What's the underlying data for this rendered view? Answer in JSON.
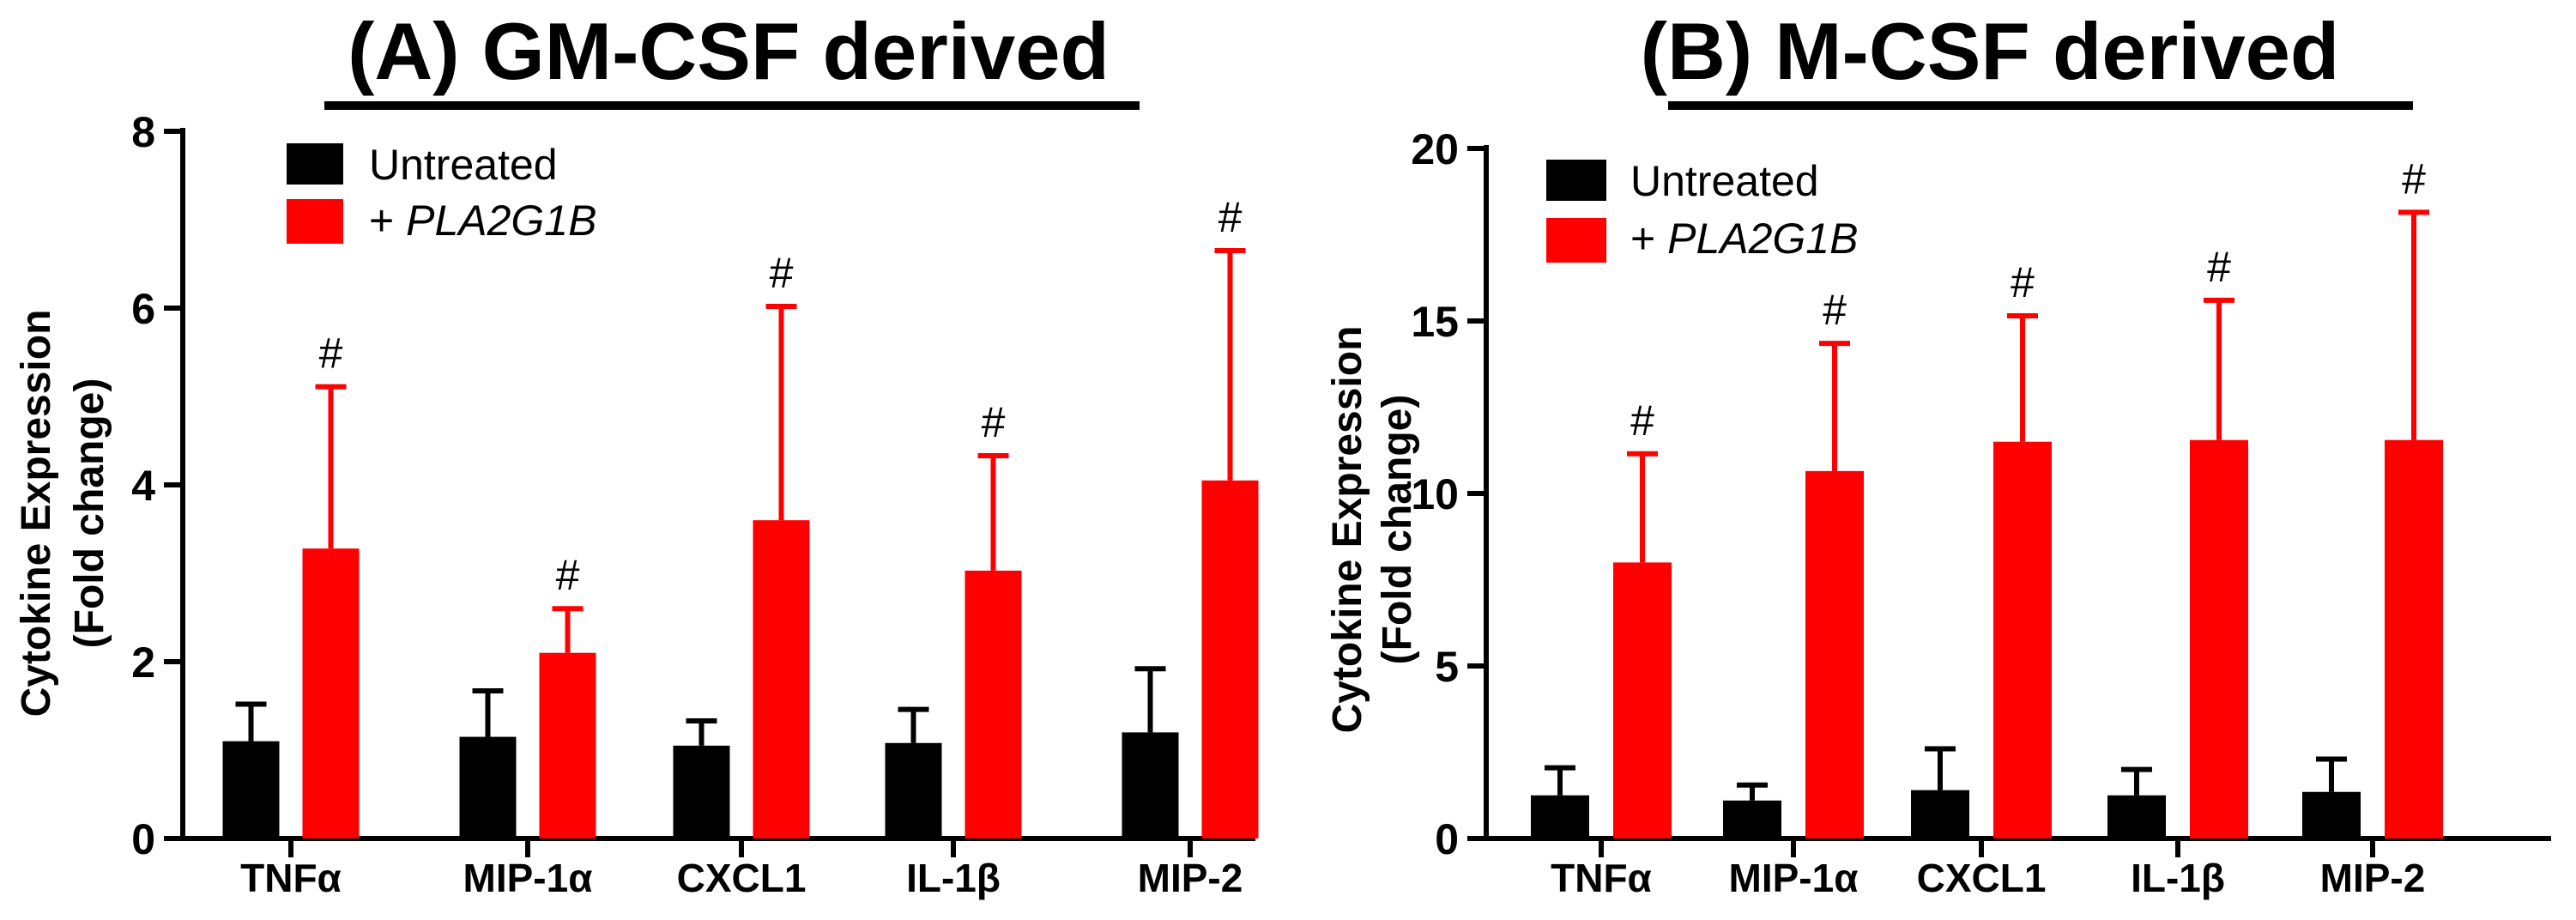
{
  "colors": {
    "untreated": "#000000",
    "treated": "#ff0000",
    "axis": "#000000"
  },
  "chart_data": [
    {
      "type": "bar",
      "title": "(A) GM-CSF derived",
      "ylabel_line1": "Cytokine Expression",
      "ylabel_line2": "(Fold change)",
      "ylim": [
        0,
        8
      ],
      "yticks": [
        "0",
        "2",
        "4",
        "6",
        "8"
      ],
      "categories": [
        "TNFα",
        "MIP-1α",
        "CXCL1",
        "IL-1β",
        "MIP-2"
      ],
      "significance_marker": "#",
      "legend": {
        "untreated": "Untreated",
        "treated_prefix": "+ ",
        "treated_gene": "PLA2G1B",
        "placement": "top-left"
      },
      "series": [
        {
          "name": "Untreated",
          "values": [
            1.1,
            1.15,
            1.05,
            1.08,
            1.2
          ],
          "errors": [
            0.42,
            0.52,
            0.28,
            0.38,
            0.72
          ]
        },
        {
          "name": "+ PLA2G1B",
          "values": [
            3.28,
            2.1,
            3.6,
            3.03,
            4.05
          ],
          "errors": [
            1.83,
            0.5,
            2.42,
            1.3,
            2.6
          ],
          "significant": [
            true,
            true,
            true,
            true,
            true
          ]
        }
      ]
    },
    {
      "type": "bar",
      "title": "(B) M-CSF derived",
      "ylabel_line1": "Cytokine Expression",
      "ylabel_line2": "(Fold change)",
      "ylim": [
        0,
        20
      ],
      "yticks": [
        "0",
        "5",
        "10",
        "15",
        "20"
      ],
      "categories": [
        "TNFα",
        "MIP-1α",
        "CXCL1",
        "IL-1β",
        "MIP-2"
      ],
      "significance_marker": "#",
      "legend": {
        "untreated": "Untreated",
        "treated_prefix": "+ ",
        "treated_gene": "PLA2G1B",
        "placement": "top-left"
      },
      "series": [
        {
          "name": "Untreated",
          "values": [
            1.25,
            1.1,
            1.4,
            1.25,
            1.35
          ],
          "errors": [
            0.8,
            0.45,
            1.2,
            0.75,
            0.95
          ]
        },
        {
          "name": "+ PLA2G1B",
          "values": [
            8.0,
            10.65,
            11.5,
            11.55,
            11.55
          ],
          "errors": [
            3.15,
            3.7,
            3.65,
            4.05,
            6.6
          ],
          "significant": [
            true,
            true,
            true,
            true,
            true
          ]
        }
      ]
    }
  ]
}
